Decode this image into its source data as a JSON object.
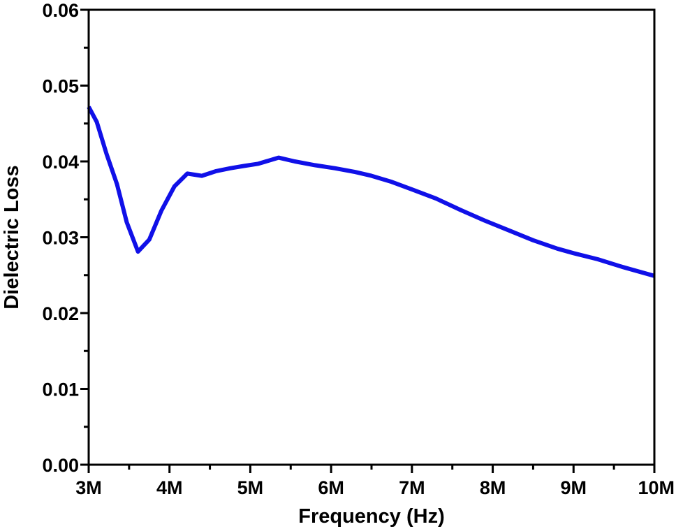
{
  "chart_data": {
    "type": "line",
    "title": "",
    "xlabel": "Frequency (Hz)",
    "ylabel": "Dielectric Loss",
    "xlim": [
      3000000,
      10000000
    ],
    "ylim": [
      0,
      0.06
    ],
    "grid": false,
    "legend": "none",
    "x_ticks": [
      3000000,
      4000000,
      5000000,
      6000000,
      7000000,
      8000000,
      9000000,
      10000000
    ],
    "x_tick_labels": [
      "3M",
      "4M",
      "5M",
      "6M",
      "7M",
      "8M",
      "9M",
      "10M"
    ],
    "y_ticks": [
      0,
      0.01,
      0.02,
      0.03,
      0.04,
      0.05,
      0.06
    ],
    "y_tick_labels": [
      "0.00",
      "0.01",
      "0.02",
      "0.03",
      "0.04",
      "0.05",
      "0.06"
    ],
    "series": [
      {
        "color": "#1010e8",
        "x": [
          3000000,
          3100000,
          3220000,
          3350000,
          3470000,
          3610000,
          3750000,
          3900000,
          4060000,
          4220000,
          4400000,
          4570000,
          4750000,
          4920000,
          5100000,
          5350000,
          5550000,
          5800000,
          6050000,
          6300000,
          6500000,
          6750000,
          7000000,
          7300000,
          7600000,
          7900000,
          8200000,
          8500000,
          8800000,
          9000000,
          9300000,
          9600000,
          10000000
        ],
        "y": [
          0.0472,
          0.0452,
          0.041,
          0.037,
          0.032,
          0.0281,
          0.0297,
          0.0335,
          0.0367,
          0.0384,
          0.0381,
          0.0387,
          0.0391,
          0.0394,
          0.0397,
          0.0405,
          0.04,
          0.0395,
          0.0391,
          0.0386,
          0.0381,
          0.0373,
          0.0363,
          0.0351,
          0.0336,
          0.0322,
          0.0309,
          0.0296,
          0.0285,
          0.0279,
          0.0271,
          0.0261,
          0.0249
        ]
      }
    ]
  }
}
